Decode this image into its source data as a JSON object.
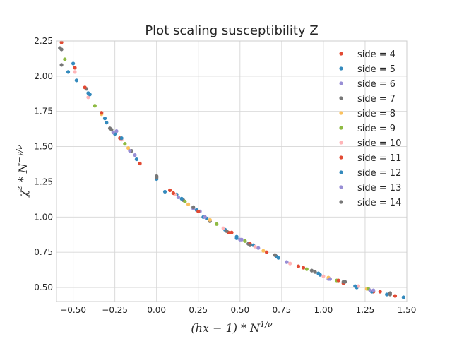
{
  "chart_data": {
    "type": "scatter",
    "title": "Plot scaling susceptibility Z",
    "xlabel": "(hx − 1) * N",
    "xlabel_sup": "1/ν",
    "ylabel": "χ",
    "ylabel_sup1": "z",
    "ylabel_mid": " * N",
    "ylabel_sup2": "−γ/ν",
    "xlim": [
      -0.6,
      1.5
    ],
    "ylim": [
      0.4,
      2.25
    ],
    "xticks": [
      -0.5,
      -0.25,
      0.0,
      0.25,
      0.5,
      0.75,
      1.0,
      1.25,
      1.5
    ],
    "xtick_labels": [
      "−0.50",
      "−0.25",
      "0.00",
      "0.25",
      "0.50",
      "0.75",
      "1.00",
      "1.25",
      "1.50"
    ],
    "yticks": [
      0.5,
      0.75,
      1.0,
      1.25,
      1.5,
      1.75,
      2.0,
      2.25
    ],
    "ytick_labels": [
      "0.50",
      "0.75",
      "1.00",
      "1.25",
      "1.50",
      "1.75",
      "2.00",
      "2.25"
    ],
    "grid": true,
    "legend_position": "top-right",
    "series": [
      {
        "name": "side = 4",
        "color": "#E24A33",
        "points": [
          [
            -0.57,
            2.24
          ],
          [
            -0.49,
            2.06
          ],
          [
            -0.1,
            1.38
          ],
          [
            0.08,
            1.19
          ],
          [
            0.43,
            0.89
          ],
          [
            0.66,
            0.75
          ],
          [
            0.88,
            0.64
          ],
          [
            1.12,
            0.53
          ],
          [
            1.3,
            0.47
          ],
          [
            1.43,
            0.44
          ]
        ]
      },
      {
        "name": "side = 5",
        "color": "#348ABD",
        "points": [
          [
            -0.5,
            2.09
          ],
          [
            -0.48,
            1.97
          ],
          [
            -0.41,
            1.88
          ],
          [
            -0.31,
            1.7
          ],
          [
            -0.25,
            1.59
          ],
          [
            -0.12,
            1.41
          ],
          [
            0.0,
            1.27
          ],
          [
            0.12,
            1.16
          ],
          [
            0.24,
            1.05
          ],
          [
            0.3,
            0.99
          ],
          [
            0.41,
            0.91
          ],
          [
            0.48,
            0.86
          ],
          [
            0.58,
            0.8
          ],
          [
            0.72,
            0.72
          ],
          [
            0.97,
            0.6
          ],
          [
            1.2,
            0.5
          ],
          [
            1.29,
            0.47
          ],
          [
            1.48,
            0.43
          ]
        ]
      },
      {
        "name": "side = 6",
        "color": "#988ED5",
        "points": [
          [
            -0.24,
            1.61
          ],
          [
            -0.13,
            1.44
          ],
          [
            0.22,
            1.06
          ],
          [
            0.26,
            1.04
          ],
          [
            0.5,
            0.84
          ],
          [
            0.61,
            0.78
          ],
          [
            0.78,
            0.68
          ],
          [
            1.03,
            0.56
          ],
          [
            1.3,
            0.48
          ]
        ]
      },
      {
        "name": "side = 7",
        "color": "#777777",
        "points": [
          [
            -0.57,
            2.19
          ],
          [
            -0.57,
            2.08
          ],
          [
            -0.42,
            1.91
          ],
          [
            -0.28,
            1.63
          ],
          [
            -0.15,
            1.47
          ],
          [
            0.0,
            1.29
          ],
          [
            0.16,
            1.12
          ],
          [
            0.32,
            0.97
          ],
          [
            0.55,
            0.81
          ],
          [
            0.71,
            0.73
          ],
          [
            0.93,
            0.62
          ],
          [
            1.12,
            0.54
          ],
          [
            1.4,
            0.45
          ]
        ]
      },
      {
        "name": "side = 8",
        "color": "#FBC15E",
        "points": [
          [
            -0.33,
            1.73
          ],
          [
            -0.17,
            1.49
          ],
          [
            0.19,
            1.09
          ],
          [
            0.32,
            0.98
          ],
          [
            0.64,
            0.76
          ],
          [
            1.03,
            0.57
          ],
          [
            1.26,
            0.49
          ]
        ]
      },
      {
        "name": "side = 9",
        "color": "#8EBA42",
        "points": [
          [
            -0.55,
            2.12
          ],
          [
            -0.37,
            1.79
          ],
          [
            -0.19,
            1.52
          ],
          [
            0.17,
            1.11
          ],
          [
            0.36,
            0.95
          ],
          [
            0.53,
            0.83
          ],
          [
            0.9,
            0.63
          ],
          [
            1.08,
            0.55
          ],
          [
            1.27,
            0.49
          ]
        ]
      },
      {
        "name": "side = 10",
        "color": "#FFB5B8",
        "points": [
          [
            -0.49,
            2.03
          ],
          [
            -0.41,
            1.85
          ],
          [
            -0.21,
            1.55
          ],
          [
            0.11,
            1.16
          ],
          [
            0.4,
            0.92
          ],
          [
            0.59,
            0.79
          ],
          [
            0.8,
            0.67
          ],
          [
            1.0,
            0.58
          ],
          [
            1.21,
            0.51
          ]
        ]
      },
      {
        "name": "side = 11",
        "color": "#E24A33",
        "points": [
          [
            -0.43,
            1.92
          ],
          [
            -0.33,
            1.74
          ],
          [
            -0.22,
            1.56
          ],
          [
            0.1,
            1.17
          ],
          [
            0.25,
            1.04
          ],
          [
            0.45,
            0.89
          ],
          [
            0.56,
            0.81
          ],
          [
            0.85,
            0.65
          ],
          [
            1.09,
            0.55
          ],
          [
            1.34,
            0.47
          ]
        ]
      },
      {
        "name": "side = 12",
        "color": "#348ABD",
        "points": [
          [
            -0.53,
            2.03
          ],
          [
            -0.4,
            1.87
          ],
          [
            -0.3,
            1.67
          ],
          [
            -0.21,
            1.56
          ],
          [
            0.05,
            1.18
          ],
          [
            0.15,
            1.13
          ],
          [
            0.28,
            1.0
          ],
          [
            0.48,
            0.85
          ],
          [
            0.73,
            0.71
          ],
          [
            0.98,
            0.59
          ],
          [
            1.19,
            0.51
          ],
          [
            1.38,
            0.45
          ]
        ]
      },
      {
        "name": "side = 13",
        "color": "#988ED5",
        "points": [
          [
            -0.26,
            1.6
          ],
          [
            -0.16,
            1.47
          ],
          [
            0.13,
            1.14
          ],
          [
            0.29,
            1.0
          ],
          [
            0.51,
            0.84
          ],
          [
            0.78,
            0.68
          ],
          [
            1.04,
            0.56
          ],
          [
            1.28,
            0.48
          ]
        ]
      },
      {
        "name": "side = 14",
        "color": "#777777",
        "points": [
          [
            -0.58,
            2.2
          ],
          [
            -0.27,
            1.62
          ],
          [
            0.0,
            1.28
          ],
          [
            0.22,
            1.07
          ],
          [
            0.42,
            0.9
          ],
          [
            0.56,
            0.8
          ],
          [
            0.71,
            0.73
          ],
          [
            0.95,
            0.61
          ],
          [
            1.13,
            0.54
          ],
          [
            1.4,
            0.46
          ]
        ]
      }
    ]
  }
}
